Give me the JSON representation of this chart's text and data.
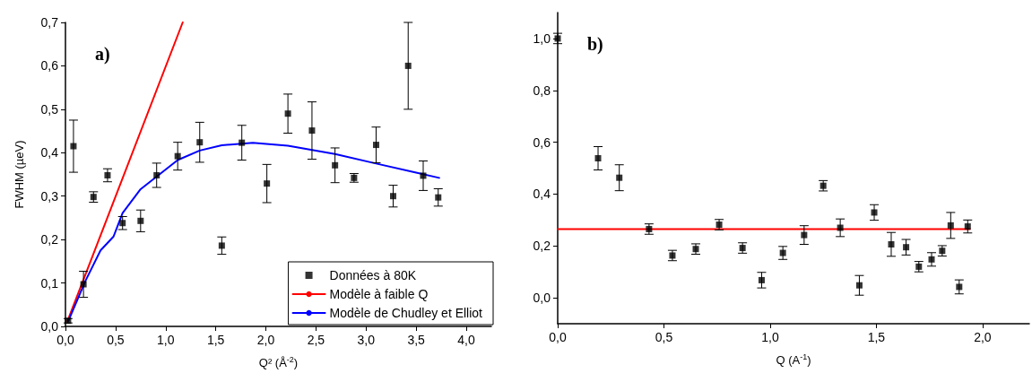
{
  "chart_data": [
    {
      "type": "scatter",
      "xlabel": "Q² (Å$^{-2}$)",
      "ylabel": "FWHM (µeV)",
      "annotations": [
        "a)"
      ],
      "xlim": [
        0,
        4.25
      ],
      "xticks": [
        {
          "value": 0,
          "label": "0,0"
        },
        {
          "value": 0.5,
          "label": "0,5"
        },
        {
          "value": 1,
          "label": "1,0"
        },
        {
          "value": 1.5,
          "label": "1,5"
        },
        {
          "value": 2,
          "label": "2,0"
        },
        {
          "value": 2.5,
          "label": "2,5"
        },
        {
          "value": 3,
          "label": "3,0"
        },
        {
          "value": 3.5,
          "label": "3,5"
        },
        {
          "value": 4,
          "label": "4,0"
        }
      ],
      "ylim": [
        0,
        0.7
      ],
      "yticks": [
        {
          "value": 0,
          "label": "0,0"
        },
        {
          "value": 0.1,
          "label": "0,1"
        },
        {
          "value": 0.2,
          "label": "0,2"
        },
        {
          "value": 0.3,
          "label": "0,3"
        },
        {
          "value": 0.4,
          "label": "0,4"
        },
        {
          "value": 0.5,
          "label": "0,5"
        },
        {
          "value": 0.6,
          "label": "0,6"
        },
        {
          "value": 0.7,
          "label": "0,7"
        }
      ],
      "grid": false,
      "legend": "bottom right",
      "series": [
        {
          "name": "Données à 80K",
          "marker": "square",
          "color": "#000000",
          "x": [
            0.026,
            0.08,
            0.18,
            0.28,
            0.42,
            0.57,
            0.75,
            0.91,
            1.12,
            1.34,
            1.56,
            1.76,
            2.01,
            2.22,
            2.46,
            2.69,
            2.88,
            3.1,
            3.27,
            3.42,
            3.57,
            3.72
          ],
          "values": [
            0.013,
            0.415,
            0.097,
            0.298,
            0.348,
            0.238,
            0.243,
            0.348,
            0.392,
            0.424,
            0.186,
            0.423,
            0.329,
            0.49,
            0.451,
            0.371,
            0.342,
            0.418,
            0.3,
            0.6,
            0.347,
            0.297
          ],
          "errors": [
            0.005,
            0.06,
            0.03,
            0.012,
            0.015,
            0.015,
            0.025,
            0.028,
            0.032,
            0.046,
            0.02,
            0.04,
            0.044,
            0.045,
            0.066,
            0.04,
            0.01,
            0.041,
            0.025,
            0.1,
            0.034,
            0.02
          ]
        },
        {
          "name": "Modèle à faible Q",
          "type": "line",
          "color": "#ff0000",
          "x": [
            0.02,
            1.17
          ],
          "values": [
            0.012,
            0.7
          ]
        },
        {
          "name": "Modèle de Chudley et Elliot",
          "type": "line",
          "color": "#0000ff",
          "x": [
            0.03,
            0.2,
            0.35,
            0.48,
            0.57,
            0.75,
            1.12,
            1.34,
            1.56,
            1.87,
            2.22,
            2.69,
            3.1,
            3.5,
            3.73
          ],
          "values": [
            0.013,
            0.105,
            0.175,
            0.207,
            0.261,
            0.316,
            0.383,
            0.405,
            0.417,
            0.423,
            0.416,
            0.397,
            0.375,
            0.354,
            0.342
          ]
        }
      ]
    },
    {
      "type": "scatter",
      "xlabel": "Q (A$^{-1}$)",
      "annotations": [
        "b)"
      ],
      "xlim": [
        0,
        2.22
      ],
      "xticks": [
        {
          "value": 0,
          "label": "0,0"
        },
        {
          "value": 0.5,
          "label": "0,5"
        },
        {
          "value": 1,
          "label": "1,0"
        },
        {
          "value": 1.5,
          "label": "1,5"
        },
        {
          "value": 2,
          "label": "2,0"
        }
      ],
      "ylim": [
        -0.1,
        1.1
      ],
      "yticks": [
        {
          "value": 0,
          "label": "0,0"
        },
        {
          "value": 0.2,
          "label": "0,2"
        },
        {
          "value": 0.4,
          "label": "0,4"
        },
        {
          "value": 0.6,
          "label": "0,6"
        },
        {
          "value": 0.8,
          "label": "0,8"
        },
        {
          "value": 1,
          "label": "1,0"
        }
      ],
      "grid": false,
      "series": [
        {
          "marker": "square",
          "color": "#000000",
          "x": [
            0,
            0.19,
            0.29,
            0.43,
            0.54,
            0.65,
            0.76,
            0.87,
            0.96,
            1.06,
            1.16,
            1.25,
            1.33,
            1.42,
            1.49,
            1.57,
            1.64,
            1.7,
            1.76,
            1.81,
            1.85,
            1.89,
            1.93
          ],
          "values": [
            1.0,
            0.538,
            0.463,
            0.265,
            0.163,
            0.188,
            0.282,
            0.192,
            0.068,
            0.173,
            0.242,
            0.432,
            0.27,
            0.048,
            0.329,
            0.206,
            0.195,
            0.12,
            0.148,
            0.181,
            0.279,
            0.042,
            0.275
          ],
          "errors": [
            0.02,
            0.045,
            0.05,
            0.02,
            0.02,
            0.02,
            0.02,
            0.02,
            0.03,
            0.025,
            0.036,
            0.02,
            0.034,
            0.038,
            0.03,
            0.046,
            0.03,
            0.02,
            0.026,
            0.02,
            0.05,
            0.027,
            0.025
          ]
        },
        {
          "type": "line",
          "color": "#ff0000",
          "x": [
            0,
            1.94
          ],
          "values": [
            0.265,
            0.265
          ]
        }
      ]
    }
  ]
}
